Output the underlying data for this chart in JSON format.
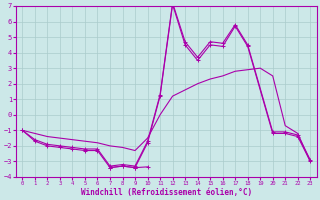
{
  "xlabel": "Windchill (Refroidissement éolien,°C)",
  "background_color": "#cce8e8",
  "grid_color": "#aacccc",
  "line_color": "#aa00aa",
  "xlim": [
    -0.5,
    23.5
  ],
  "ylim": [
    -4,
    7
  ],
  "xticks": [
    0,
    1,
    2,
    3,
    4,
    5,
    6,
    7,
    8,
    9,
    10,
    11,
    12,
    13,
    14,
    15,
    16,
    17,
    18,
    19,
    20,
    21,
    22,
    23
  ],
  "yticks": [
    -4,
    -3,
    -2,
    -1,
    0,
    1,
    2,
    3,
    4,
    5,
    6,
    7
  ],
  "lines": [
    {
      "x": [
        0,
        1,
        2,
        3,
        4,
        5,
        6,
        7,
        8,
        9,
        10,
        11,
        12,
        13,
        14,
        15,
        16,
        17,
        18,
        20,
        21,
        22,
        23
      ],
      "y": [
        -1.0,
        -1.7,
        -2.0,
        -2.1,
        -2.2,
        -2.3,
        -2.3,
        -3.4,
        -3.3,
        -3.4,
        -1.8,
        1.2,
        7.1,
        4.5,
        3.5,
        4.5,
        4.4,
        5.7,
        4.4,
        -1.2,
        -1.2,
        -1.4,
        -3.0
      ],
      "marker": true
    },
    {
      "x": [
        0,
        1,
        2,
        3,
        4,
        5,
        6,
        7,
        8,
        9,
        10,
        11,
        12,
        13,
        14,
        15,
        16,
        17,
        18,
        20,
        21,
        22,
        23
      ],
      "y": [
        -1.0,
        -1.6,
        -1.9,
        -2.0,
        -2.1,
        -2.2,
        -2.2,
        -3.3,
        -3.2,
        -3.3,
        -1.7,
        1.3,
        7.2,
        4.7,
        3.7,
        4.7,
        4.6,
        5.8,
        4.5,
        -1.1,
        -1.1,
        -1.3,
        -2.9
      ],
      "marker": true
    },
    {
      "x": [
        7,
        8,
        9,
        10
      ],
      "y": [
        -3.4,
        -3.3,
        -3.4,
        -3.35
      ],
      "marker": true
    },
    {
      "x": [
        0,
        1,
        2,
        3,
        4,
        5,
        6,
        7,
        8,
        9,
        10,
        11,
        12,
        13,
        14,
        15,
        16,
        17,
        18,
        19,
        20,
        21,
        22,
        23
      ],
      "y": [
        -1.0,
        -1.2,
        -1.4,
        -1.5,
        -1.6,
        -1.7,
        -1.8,
        -2.0,
        -2.1,
        -2.3,
        -1.5,
        0.0,
        1.2,
        1.6,
        2.0,
        2.3,
        2.5,
        2.8,
        2.9,
        3.0,
        2.5,
        -0.7,
        -1.2,
        -3.0
      ],
      "marker": false
    }
  ]
}
